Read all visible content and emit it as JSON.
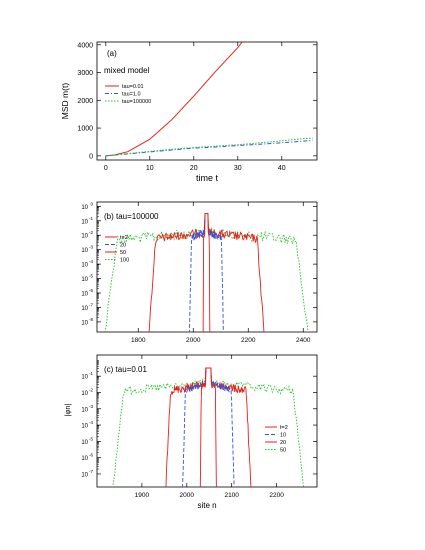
{
  "chart_data": [
    {
      "type": "line",
      "panel_label": "(a)",
      "annotation": "mixed model",
      "xlabel": "time t",
      "ylabel": "MSD m(t)",
      "xlim": [
        -2,
        48
      ],
      "ylim": [
        -150,
        4100
      ],
      "xticks": [
        0,
        10,
        20,
        30,
        40
      ],
      "yticks": [
        0,
        1000,
        2000,
        3000,
        4000
      ],
      "ytick_labels": [
        "0",
        "1000",
        "2000",
        "3000",
        "4000"
      ],
      "legend": "top-left",
      "series": [
        {
          "name": "tau=0.01",
          "color": "#e8201a",
          "dash": "solid",
          "x": [
            0,
            2,
            5,
            10,
            15,
            20,
            25,
            30,
            31
          ],
          "y": [
            0,
            30,
            150,
            600,
            1300,
            2150,
            3050,
            3900,
            4100
          ]
        },
        {
          "name": "tau=1.0",
          "color": "#2f55e0",
          "dash": "dashdot",
          "x": [
            0,
            5,
            10,
            15,
            20,
            25,
            30,
            35,
            40,
            45,
            47
          ],
          "y": [
            0,
            70,
            140,
            210,
            280,
            320,
            370,
            420,
            470,
            530,
            560
          ]
        },
        {
          "name": "tau=100000",
          "color": "#22c022",
          "dash": "dot",
          "x": [
            0,
            5,
            10,
            15,
            20,
            25,
            30,
            35,
            40,
            45,
            47
          ],
          "y": [
            0,
            80,
            160,
            240,
            300,
            350,
            400,
            470,
            540,
            620,
            640
          ]
        }
      ]
    },
    {
      "type": "line",
      "panel_label": "(b)",
      "annotation": "tau=100000",
      "xlabel": "",
      "ylabel": "",
      "log_y": true,
      "xlim": [
        1650,
        2450
      ],
      "ylim_exp": [
        -8.7,
        0.3
      ],
      "xticks": [
        1800,
        2000,
        2200,
        2400
      ],
      "ytick_exps": [
        0,
        -1,
        -2,
        -3,
        -4,
        -5,
        -6,
        -7,
        -8
      ],
      "legend": "left",
      "series": [
        {
          "name": "t=2",
          "color": "#e8201a",
          "dash": "solid",
          "center": 2048,
          "halfwidth": 12,
          "noise": 0.3
        },
        {
          "name": "20",
          "color": "#2f55e0",
          "dash": "dash",
          "center": 2048,
          "halfwidth": 62,
          "noise": 0.5
        },
        {
          "name": "50",
          "color": "#e8201a",
          "dash": "solid",
          "center": 2048,
          "halfwidth": 210,
          "noise": 0.6
        },
        {
          "name": "100",
          "color": "#22c022",
          "dash": "dot",
          "center": 2048,
          "halfwidth": 370,
          "noise": 0.7
        }
      ]
    },
    {
      "type": "line",
      "panel_label": "(c)",
      "annotation": "tau=0.01",
      "xlabel": "site n",
      "ylabel": "|φn|",
      "log_y": true,
      "xlim": [
        1800,
        2290
      ],
      "ylim_exp": [
        -7.8,
        0.3
      ],
      "xticks": [
        1900,
        2000,
        2100,
        2200
      ],
      "ytick_exps": [
        -1,
        -2,
        -3,
        -4,
        -5,
        -6,
        -7
      ],
      "legend": "right",
      "series": [
        {
          "name": "t=2",
          "color": "#e8201a",
          "dash": "solid",
          "center": 2048,
          "halfwidth": 18,
          "noise": 0.2
        },
        {
          "name": "10",
          "color": "#2f55e0",
          "dash": "dash",
          "center": 2048,
          "halfwidth": 58,
          "noise": 0.4
        },
        {
          "name": "20",
          "color": "#e8201a",
          "dash": "solid",
          "center": 2048,
          "halfwidth": 96,
          "noise": 0.5
        },
        {
          "name": "50",
          "color": "#22c022",
          "dash": "dot",
          "center": 2048,
          "halfwidth": 215,
          "noise": 0.5
        }
      ]
    }
  ]
}
